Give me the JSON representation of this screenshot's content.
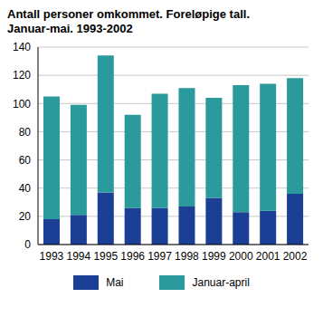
{
  "chart_data": {
    "type": "bar",
    "title": "Antall personer omkommet. Foreløpige tall. Januar-mai. 1993-2002",
    "categories": [
      "1993",
      "1994",
      "1995",
      "1996",
      "1997",
      "1998",
      "1999",
      "2000",
      "2001",
      "2002"
    ],
    "series": [
      {
        "name": "Mai",
        "color": "#1b3f94",
        "values": [
          18,
          21,
          37,
          26,
          26,
          27,
          33,
          23,
          24,
          36
        ]
      },
      {
        "name": "Januar-april",
        "color": "#2a9a9c",
        "values": [
          87,
          78,
          97,
          66,
          81,
          84,
          71,
          90,
          90,
          82
        ]
      }
    ],
    "ylim": [
      0,
      140
    ],
    "yticks": [
      0,
      20,
      40,
      60,
      80,
      100,
      120,
      140
    ],
    "stacked": true,
    "grid": true,
    "legend": "bottom"
  }
}
